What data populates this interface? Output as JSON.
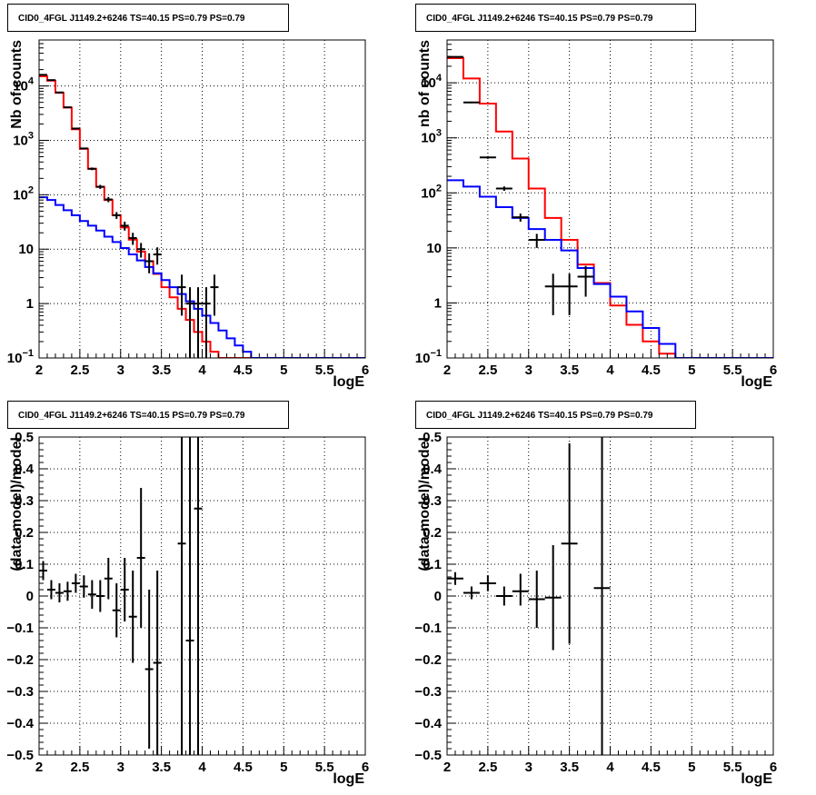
{
  "colors": {
    "frame": "#000000",
    "data": "#000000",
    "total_model": "#ff0000",
    "background_model": "#0000ff",
    "grid": "#000000"
  },
  "panels": [
    {
      "title": "CID0_4FGL J1149.2+6246 TS=40.15 PS=0.79 PS=0.79",
      "chart_data": {
        "type": "line",
        "xlabel": "logE",
        "ylabel": "Nb of counts",
        "xlim": [
          2,
          6
        ],
        "ylim": [
          0.1,
          70000
        ],
        "yscale": "log",
        "grid": true,
        "x_ticks": [
          "2",
          "2.5",
          "3",
          "3.5",
          "4",
          "4.5",
          "5",
          "5.5",
          "6"
        ],
        "y_ticks": [
          {
            "value": 0.1,
            "base": "10",
            "exp": "−1"
          },
          {
            "value": 1,
            "label": "1"
          },
          {
            "value": 10,
            "label": "10"
          },
          {
            "value": 100,
            "base": "10",
            "exp": "2"
          },
          {
            "value": 1000,
            "base": "10",
            "exp": "3"
          },
          {
            "value": 10000,
            "base": "10",
            "exp": "4"
          }
        ],
        "series": [
          {
            "kind": "step",
            "color": "red",
            "edges_start": 2,
            "bin_width": 0.1,
            "values": [
              15000,
              12500,
              7500,
              4000,
              1600,
              700,
              300,
              140,
              80,
              42,
              25,
              15,
              9,
              6,
              3.5,
              2,
              1.3,
              0.8,
              0.5,
              0.3,
              0.2,
              0.13,
              0.1,
              0.1,
              0.1,
              0.1,
              0.1,
              0.1,
              0.1,
              0.1,
              0.1,
              0.1,
              0.1,
              0.1,
              0.1,
              0.1,
              0.1,
              0.1,
              0.1,
              0.1
            ]
          },
          {
            "kind": "step",
            "color": "blue",
            "edges_start": 2,
            "bin_width": 0.1,
            "values": [
              90,
              80,
              65,
              52,
              42,
              33,
              27,
              22,
              17,
              13.5,
              10.5,
              8,
              6.2,
              4.7,
              3.6,
              2.7,
              2.0,
              1.5,
              1.1,
              0.8,
              0.6,
              0.44,
              0.32,
              0.23,
              0.17,
              0.13,
              0.1,
              0.1,
              0.1,
              0.1,
              0.1,
              0.1,
              0.1,
              0.1,
              0.1,
              0.1,
              0.1,
              0.1,
              0.1,
              0.1
            ]
          },
          {
            "kind": "points",
            "color": "black",
            "half_width": 0.05,
            "points": [
              {
                "x": 2.05,
                "y": 16000,
                "lo": 15700,
                "hi": 16300
              },
              {
                "x": 2.15,
                "y": 12800,
                "lo": 12600,
                "hi": 13000
              },
              {
                "x": 2.25,
                "y": 7600,
                "lo": 7450,
                "hi": 7750
              },
              {
                "x": 2.35,
                "y": 4050,
                "lo": 3950,
                "hi": 4150
              },
              {
                "x": 2.45,
                "y": 1650,
                "lo": 1610,
                "hi": 1690
              },
              {
                "x": 2.55,
                "y": 710,
                "lo": 685,
                "hi": 735
              },
              {
                "x": 2.65,
                "y": 300,
                "lo": 283,
                "hi": 317
              },
              {
                "x": 2.75,
                "y": 140,
                "lo": 128,
                "hi": 152
              },
              {
                "x": 2.85,
                "y": 82,
                "lo": 73,
                "hi": 91
              },
              {
                "x": 2.95,
                "y": 42,
                "lo": 36,
                "hi": 48
              },
              {
                "x": 3.05,
                "y": 27,
                "lo": 22,
                "hi": 32
              },
              {
                "x": 3.15,
                "y": 16,
                "lo": 12,
                "hi": 20
              },
              {
                "x": 3.25,
                "y": 10,
                "lo": 7,
                "hi": 13
              },
              {
                "x": 3.35,
                "y": 6,
                "lo": 3.6,
                "hi": 8.4
              },
              {
                "x": 3.45,
                "y": 8,
                "lo": 5.2,
                "hi": 10.8
              },
              {
                "x": 3.75,
                "y": 2,
                "lo": 0.6,
                "hi": 3.4
              },
              {
                "x": 3.85,
                "y": 1,
                "lo": 0.1,
                "hi": 2
              },
              {
                "x": 3.95,
                "y": 1,
                "lo": 0.1,
                "hi": 2
              },
              {
                "x": 4.05,
                "y": 1,
                "lo": 0.1,
                "hi": 2
              },
              {
                "x": 4.15,
                "y": 2,
                "lo": 0.6,
                "hi": 3.4
              }
            ]
          }
        ]
      }
    },
    {
      "title": "CID0_4FGL J1149.2+6246 TS=40.15 PS=0.79 PS=0.79",
      "chart_data": {
        "type": "line",
        "xlabel": "logE",
        "ylabel": "nb of counts",
        "xlim": [
          2,
          6
        ],
        "ylim": [
          0.1,
          60000
        ],
        "yscale": "log",
        "grid": true,
        "x_ticks": [
          "2",
          "2.5",
          "3",
          "3.5",
          "4",
          "4.5",
          "5",
          "5.5",
          "6"
        ],
        "y_ticks": [
          {
            "value": 0.1,
            "base": "10",
            "exp": "−1"
          },
          {
            "value": 1,
            "label": "1"
          },
          {
            "value": 10,
            "label": "10"
          },
          {
            "value": 100,
            "base": "10",
            "exp": "2"
          },
          {
            "value": 1000,
            "base": "10",
            "exp": "3"
          },
          {
            "value": 10000,
            "base": "10",
            "exp": "4"
          }
        ],
        "series": [
          {
            "kind": "step",
            "color": "red",
            "edges_start": 2,
            "bin_width": 0.2,
            "values": [
              28000,
              12000,
              4200,
              1300,
              420,
              120,
              35,
              14,
              5,
              2.3,
              0.9,
              0.4,
              0.2,
              0.12,
              0.1,
              0.1,
              0.1,
              0.1,
              0.1,
              0.1
            ]
          },
          {
            "kind": "step",
            "color": "blue",
            "edges_start": 2,
            "bin_width": 0.2,
            "values": [
              170,
              130,
              85,
              55,
              35,
              22,
              14,
              9,
              4.3,
              2.2,
              1.3,
              0.7,
              0.35,
              0.18,
              0.1,
              0.1,
              0.1,
              0.1,
              0.1,
              0.1
            ]
          },
          {
            "kind": "points",
            "color": "black",
            "half_width": 0.1,
            "points": [
              {
                "x": 2.1,
                "y": 29500,
                "lo": 29000,
                "hi": 30000
              },
              {
                "x": 2.3,
                "y": 4400,
                "lo": 4250,
                "hi": 4550
              },
              {
                "x": 2.5,
                "y": 440,
                "lo": 415,
                "hi": 465
              },
              {
                "x": 2.7,
                "y": 120,
                "lo": 109,
                "hi": 131
              },
              {
                "x": 2.9,
                "y": 36,
                "lo": 30,
                "hi": 42
              },
              {
                "x": 3.1,
                "y": 14,
                "lo": 10,
                "hi": 18
              },
              {
                "x": 3.3,
                "y": 2,
                "lo": 0.6,
                "hi": 3.4
              },
              {
                "x": 3.5,
                "y": 2,
                "lo": 0.6,
                "hi": 3.4
              },
              {
                "x": 3.7,
                "y": 3,
                "lo": 1.3,
                "hi": 4.7
              }
            ]
          }
        ]
      }
    },
    {
      "title": "CID0_4FGL J1149.2+6246 TS=40.15 PS=0.79 PS=0.79",
      "chart_data": {
        "type": "scatter",
        "xlabel": "logE",
        "ylabel": "(data-model)/model",
        "xlim": [
          2,
          6
        ],
        "ylim": [
          -0.5,
          0.5
        ],
        "yscale": "linear",
        "grid": true,
        "x_ticks": [
          "2",
          "2.5",
          "3",
          "3.5",
          "4",
          "4.5",
          "5",
          "5.5",
          "6"
        ],
        "y_ticks": [
          {
            "value": -0.5,
            "label": "−0.5"
          },
          {
            "value": -0.4,
            "label": "−0.4"
          },
          {
            "value": -0.3,
            "label": "−0.3"
          },
          {
            "value": -0.2,
            "label": "−0.2"
          },
          {
            "value": -0.1,
            "label": "−0.1"
          },
          {
            "value": 0,
            "label": "0"
          },
          {
            "value": 0.1,
            "label": "0.1"
          },
          {
            "value": 0.2,
            "label": "0.2"
          },
          {
            "value": 0.3,
            "label": "0.3"
          },
          {
            "value": 0.4,
            "label": "0.4"
          },
          {
            "value": 0.5,
            "label": "0.5"
          }
        ],
        "series": [
          {
            "kind": "points",
            "color": "black",
            "half_width": 0.05,
            "points": [
              {
                "x": 2.05,
                "y": 0.08,
                "lo": 0.05,
                "hi": 0.11
              },
              {
                "x": 2.15,
                "y": 0.02,
                "lo": -0.01,
                "hi": 0.05
              },
              {
                "x": 2.25,
                "y": 0.01,
                "lo": -0.02,
                "hi": 0.04
              },
              {
                "x": 2.35,
                "y": 0.015,
                "lo": -0.015,
                "hi": 0.045
              },
              {
                "x": 2.45,
                "y": 0.04,
                "lo": 0.01,
                "hi": 0.07
              },
              {
                "x": 2.55,
                "y": 0.03,
                "lo": -0.005,
                "hi": 0.065
              },
              {
                "x": 2.65,
                "y": 0.005,
                "lo": -0.04,
                "hi": 0.05
              },
              {
                "x": 2.75,
                "y": 0.0,
                "lo": -0.05,
                "hi": 0.05
              },
              {
                "x": 2.85,
                "y": 0.055,
                "lo": -0.01,
                "hi": 0.12
              },
              {
                "x": 2.95,
                "y": -0.045,
                "lo": -0.13,
                "hi": 0.04
              },
              {
                "x": 3.05,
                "y": 0.02,
                "lo": -0.08,
                "hi": 0.12
              },
              {
                "x": 3.15,
                "y": -0.065,
                "lo": -0.21,
                "hi": 0.08
              },
              {
                "x": 3.25,
                "y": 0.12,
                "lo": -0.1,
                "hi": 0.34
              },
              {
                "x": 3.35,
                "y": -0.23,
                "lo": -0.48,
                "hi": 0.02
              },
              {
                "x": 3.45,
                "y": -0.21,
                "lo": -0.5,
                "hi": 0.08
              },
              {
                "x": 3.75,
                "y": 0.165,
                "lo": -0.5,
                "hi": 0.5
              },
              {
                "x": 3.85,
                "y": -0.14,
                "lo": -0.5,
                "hi": 0.5
              },
              {
                "x": 3.95,
                "y": 0.275,
                "lo": -0.5,
                "hi": 0.5
              }
            ]
          }
        ]
      }
    },
    {
      "title": "CID0_4FGL J1149.2+6246 TS=40.15 PS=0.79 PS=0.79",
      "chart_data": {
        "type": "scatter",
        "xlabel": "logE",
        "ylabel": "(data-model)/model",
        "xlim": [
          2,
          6
        ],
        "ylim": [
          -0.5,
          0.5
        ],
        "yscale": "linear",
        "grid": true,
        "x_ticks": [
          "2",
          "2.5",
          "3",
          "3.5",
          "4",
          "4.5",
          "5",
          "5.5",
          "6"
        ],
        "y_ticks": [
          {
            "value": -0.5,
            "label": "−0.5"
          },
          {
            "value": -0.4,
            "label": "−0.4"
          },
          {
            "value": -0.3,
            "label": "−0.3"
          },
          {
            "value": -0.2,
            "label": "−0.2"
          },
          {
            "value": -0.1,
            "label": "−0.1"
          },
          {
            "value": 0,
            "label": "0"
          },
          {
            "value": 0.1,
            "label": "0.1"
          },
          {
            "value": 0.2,
            "label": "0.2"
          },
          {
            "value": 0.3,
            "label": "0.3"
          },
          {
            "value": 0.4,
            "label": "0.4"
          },
          {
            "value": 0.5,
            "label": "0.5"
          }
        ],
        "series": [
          {
            "kind": "points",
            "color": "black",
            "half_width": 0.1,
            "points": [
              {
                "x": 2.1,
                "y": 0.055,
                "lo": 0.035,
                "hi": 0.075
              },
              {
                "x": 2.3,
                "y": 0.01,
                "lo": -0.01,
                "hi": 0.03
              },
              {
                "x": 2.5,
                "y": 0.04,
                "lo": 0.015,
                "hi": 0.065
              },
              {
                "x": 2.7,
                "y": 0.0,
                "lo": -0.03,
                "hi": 0.03
              },
              {
                "x": 2.9,
                "y": 0.015,
                "lo": -0.03,
                "hi": 0.07
              },
              {
                "x": 3.1,
                "y": -0.01,
                "lo": -0.1,
                "hi": 0.08
              },
              {
                "x": 3.3,
                "y": -0.005,
                "lo": -0.17,
                "hi": 0.16
              },
              {
                "x": 3.5,
                "y": 0.165,
                "lo": -0.15,
                "hi": 0.48
              },
              {
                "x": 3.9,
                "y": 0.025,
                "lo": -0.5,
                "hi": 0.5
              }
            ]
          }
        ]
      }
    }
  ]
}
